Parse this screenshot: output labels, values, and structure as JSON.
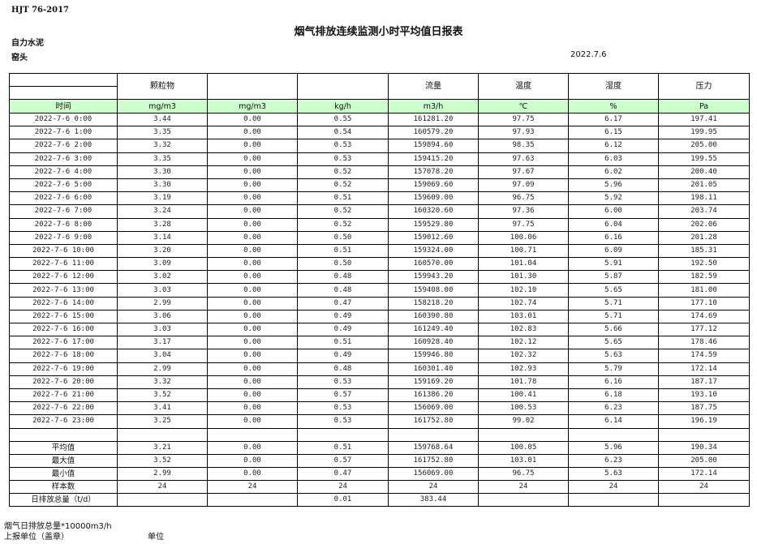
{
  "header": {
    "standard": "HJT  76-2017",
    "title": "烟气排放连续监测小时平均值日报表",
    "company": "自力水泥",
    "site": "窑头",
    "date": "2022.7.6"
  },
  "table": {
    "columns": [
      "",
      "颗粒物",
      "",
      "",
      "流量",
      "温度",
      "湿度",
      "压力"
    ],
    "units": [
      "时间",
      "mg/m3",
      "mg/m3",
      "kg/h",
      "m3/h",
      "℃",
      "%",
      "Pa"
    ],
    "rows": [
      [
        "2022-7-6 0:00",
        "3.44",
        "0.00",
        "0.55",
        "161281.20",
        "97.75",
        "6.17",
        "197.41"
      ],
      [
        "2022-7-6 1:00",
        "3.35",
        "0.00",
        "0.54",
        "160579.20",
        "97.93",
        "6.15",
        "199.95"
      ],
      [
        "2022-7-6 2:00",
        "3.32",
        "0.00",
        "0.53",
        "159894.60",
        "98.35",
        "6.12",
        "205.00"
      ],
      [
        "2022-7-6 3:00",
        "3.35",
        "0.00",
        "0.53",
        "159415.20",
        "97.63",
        "6.03",
        "199.55"
      ],
      [
        "2022-7-6 4:00",
        "3.30",
        "0.00",
        "0.52",
        "157078.20",
        "97.67",
        "6.02",
        "200.40"
      ],
      [
        "2022-7-6 5:00",
        "3.30",
        "0.00",
        "0.52",
        "159069.60",
        "97.09",
        "5.96",
        "201.05"
      ],
      [
        "2022-7-6 6:00",
        "3.19",
        "0.00",
        "0.51",
        "159609.00",
        "96.75",
        "5.92",
        "198.11"
      ],
      [
        "2022-7-6 7:00",
        "3.24",
        "0.00",
        "0.52",
        "160320.60",
        "97.36",
        "6.00",
        "203.74"
      ],
      [
        "2022-7-6 8:00",
        "3.28",
        "0.00",
        "0.52",
        "159529.80",
        "97.75",
        "6.04",
        "202.06"
      ],
      [
        "2022-7-6 9:00",
        "3.14",
        "0.00",
        "0.50",
        "159012.60",
        "100.06",
        "6.16",
        "201.28"
      ],
      [
        "2022-7-6 10:00",
        "3.20",
        "0.00",
        "0.51",
        "159324.00",
        "100.71",
        "6.09",
        "185.31"
      ],
      [
        "2022-7-6 11:00",
        "3.09",
        "0.00",
        "0.50",
        "160570.00",
        "101.04",
        "5.91",
        "192.50"
      ],
      [
        "2022-7-6 12:00",
        "3.02",
        "0.00",
        "0.48",
        "159943.20",
        "101.30",
        "5.87",
        "182.59"
      ],
      [
        "2022-7-6 13:00",
        "3.03",
        "0.00",
        "0.48",
        "159408.00",
        "102.10",
        "5.65",
        "181.00"
      ],
      [
        "2022-7-6 14:00",
        "2.99",
        "0.00",
        "0.47",
        "158218.20",
        "102.74",
        "5.71",
        "177.10"
      ],
      [
        "2022-7-6 15:00",
        "3.06",
        "0.00",
        "0.49",
        "160390.80",
        "103.01",
        "5.71",
        "174.69"
      ],
      [
        "2022-7-6 16:00",
        "3.03",
        "0.00",
        "0.49",
        "161249.40",
        "102.83",
        "5.66",
        "177.12"
      ],
      [
        "2022-7-6 17:00",
        "3.17",
        "0.00",
        "0.51",
        "160928.40",
        "102.12",
        "5.65",
        "178.46"
      ],
      [
        "2022-7-6 18:00",
        "3.04",
        "0.00",
        "0.49",
        "159946.80",
        "102.32",
        "5.63",
        "174.59"
      ],
      [
        "2022-7-6 19:00",
        "2.99",
        "0.00",
        "0.48",
        "160301.40",
        "102.93",
        "5.79",
        "172.14"
      ],
      [
        "2022-7-6 20:00",
        "3.32",
        "0.00",
        "0.53",
        "159169.20",
        "101.78",
        "6.16",
        "187.17"
      ],
      [
        "2022-7-6 21:00",
        "3.52",
        "0.00",
        "0.57",
        "161386.20",
        "100.41",
        "6.18",
        "193.10"
      ],
      [
        "2022-7-6 22:00",
        "3.41",
        "0.00",
        "0.53",
        "156069.00",
        "100.53",
        "6.23",
        "187.75"
      ],
      [
        "2022-7-6 23:00",
        "3.25",
        "0.00",
        "0.53",
        "161752.80",
        "99.02",
        "6.14",
        "196.19"
      ]
    ],
    "summary": [
      [
        "平均值",
        "3.21",
        "0.00",
        "0.51",
        "159768.64",
        "100.05",
        "5.96",
        "190.34"
      ],
      [
        "最大值",
        "3.52",
        "0.00",
        "0.57",
        "161752.80",
        "103.01",
        "6.23",
        "205.00"
      ],
      [
        "最小值",
        "2.99",
        "0.00",
        "0.47",
        "156069.00",
        "96.75",
        "5.63",
        "172.14"
      ],
      [
        "样本数",
        "24",
        "24",
        "24",
        "24",
        "24",
        "24",
        "24"
      ],
      [
        "日排放总量（t/d）",
        "",
        "",
        "0.01",
        "383.44",
        "",
        "",
        ""
      ]
    ]
  },
  "footer": {
    "note": "烟气日排放总量*10000m3/h",
    "reporter_label": "上报单位（盖章）",
    "unit_label": "单位"
  },
  "colors": {
    "unit_row_bg": "#ccffcc"
  }
}
